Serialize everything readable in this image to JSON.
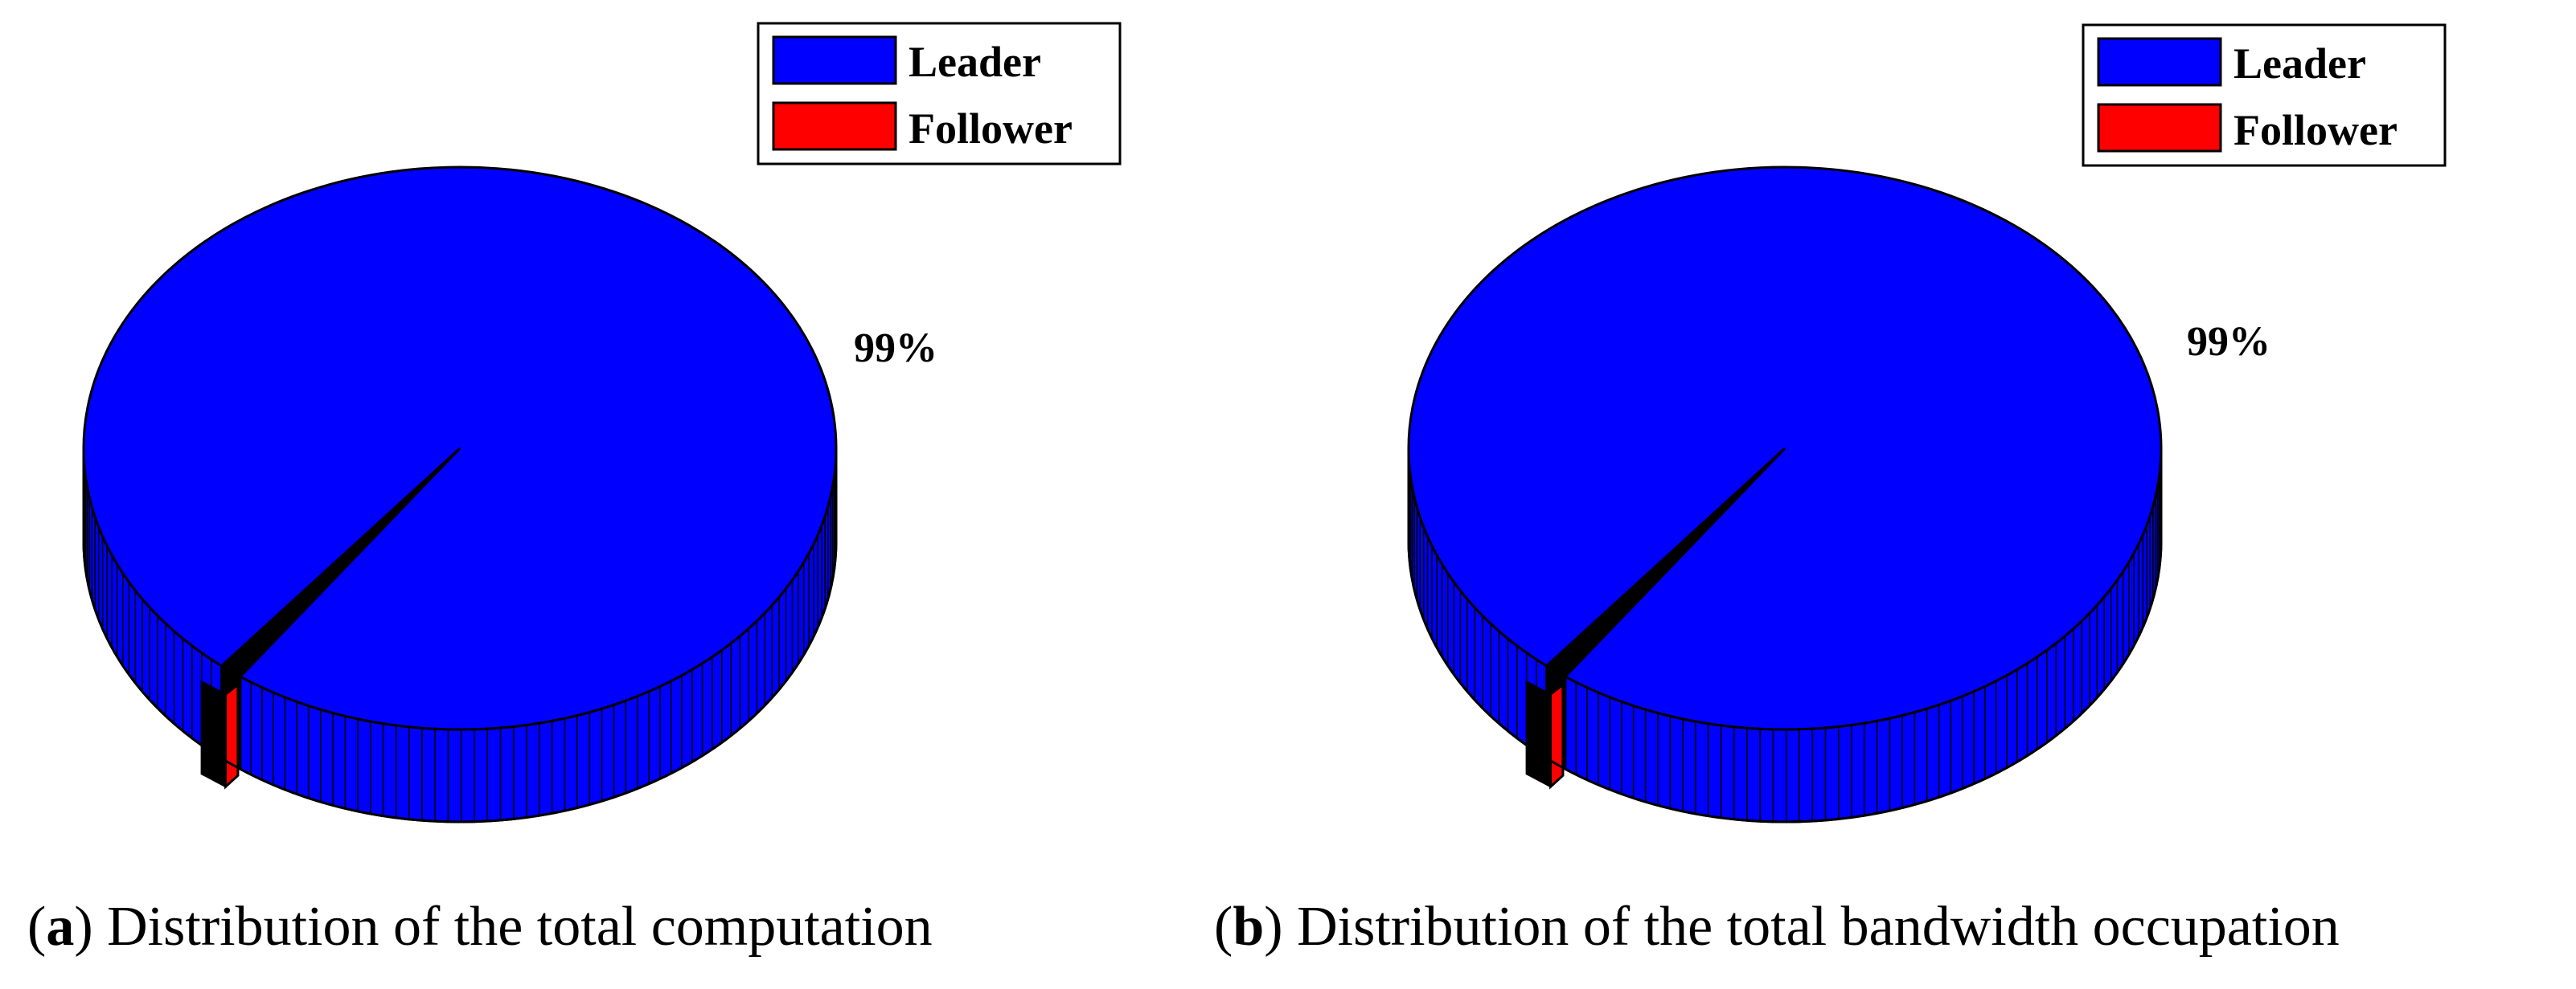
{
  "colors": {
    "leader": "#0000FF",
    "follower": "#FF0000",
    "gap": "#000000",
    "outline": "#000000"
  },
  "chart_data": [
    {
      "type": "pie",
      "style": "3d",
      "caption_letter": "a",
      "caption_text": "Distribution of the total computation",
      "labels": [
        "Leader",
        "Follower"
      ],
      "values": [
        99,
        1
      ],
      "data_labels": [
        "99%",
        ""
      ],
      "legend": [
        "Leader",
        "Follower"
      ],
      "legend_position": "top-right"
    },
    {
      "type": "pie",
      "style": "3d",
      "caption_letter": "b",
      "caption_text": "Distribution of the total bandwidth occupation",
      "labels": [
        "Leader",
        "Follower"
      ],
      "values": [
        99,
        1
      ],
      "data_labels": [
        "99%",
        ""
      ],
      "legend": [
        "Leader",
        "Follower"
      ],
      "legend_position": "top-right"
    }
  ]
}
